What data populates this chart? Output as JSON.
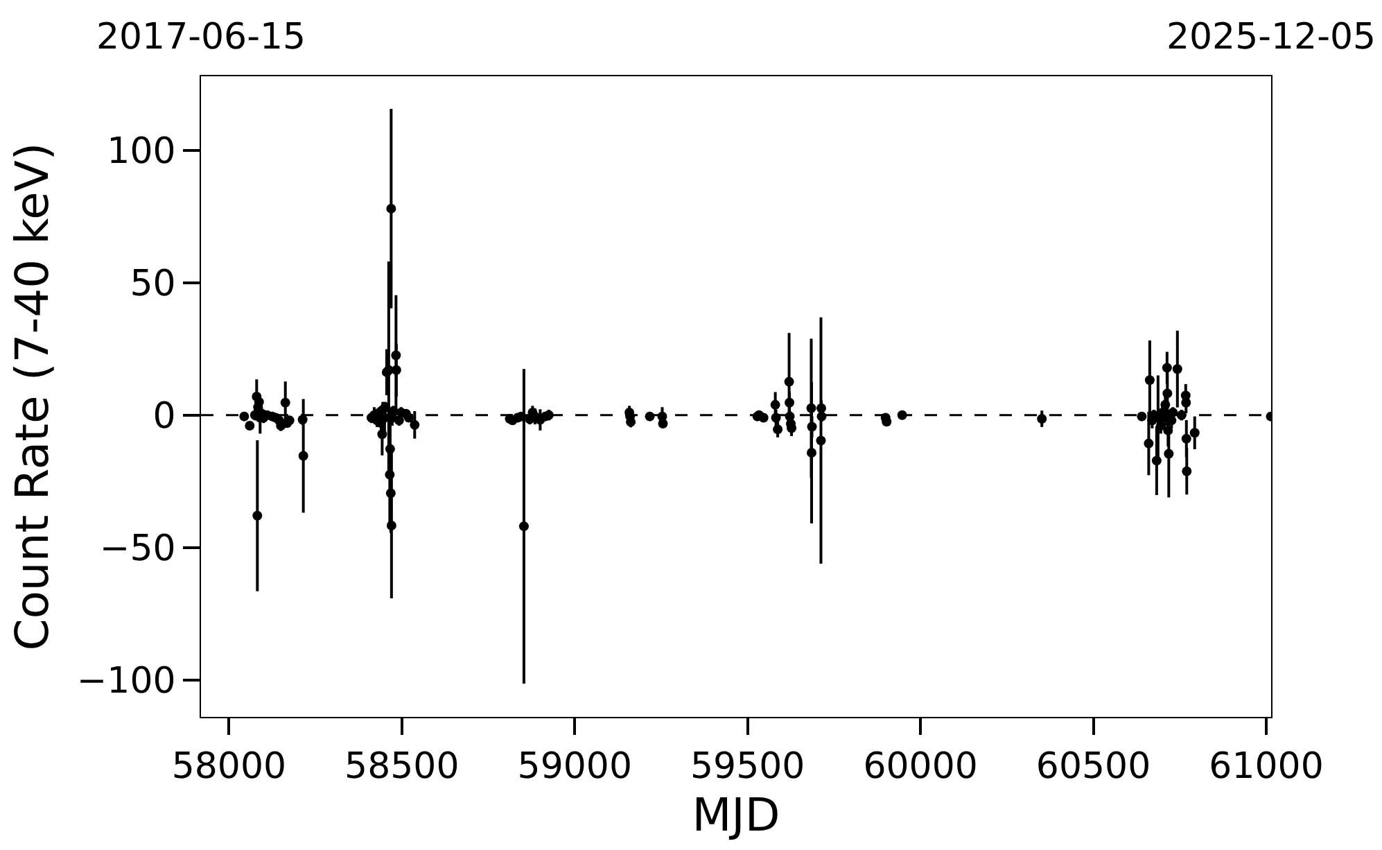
{
  "chart_data": {
    "type": "scatter",
    "xlabel": "MJD",
    "ylabel": "Count Rate (7-40 keV)",
    "x": [
      58044,
      58060,
      58075,
      58080,
      58082,
      58084,
      58087,
      58090,
      58095,
      58100,
      58110,
      58125,
      58135,
      58145,
      58150,
      58163,
      58168,
      58175,
      58213,
      58215,
      58412,
      58420,
      58428,
      58435,
      58440,
      58443,
      58445,
      58450,
      58452,
      58456,
      58462,
      58465,
      58466,
      58468,
      58469,
      58470,
      58472,
      58475,
      58483,
      58484,
      58492,
      58498,
      58512,
      58520,
      58537,
      58812,
      58820,
      58835,
      58845,
      58853,
      58870,
      58878,
      58885,
      58900,
      58915,
      58925,
      59158,
      59160,
      59162,
      59217,
      59253,
      59255,
      59528,
      59533,
      59546,
      59580,
      59582,
      59587,
      59620,
      59621,
      59622,
      59625,
      59627,
      59684,
      59685,
      59686,
      59712,
      59713,
      59714,
      59899,
      59902,
      59947,
      60351,
      60640,
      60660,
      60663,
      60670,
      60675,
      60683,
      60687,
      60695,
      60700,
      60708,
      60710,
      60713,
      60714,
      60716,
      60718,
      60726,
      60730,
      60743,
      60755,
      60767,
      60768,
      60769,
      60770,
      60793,
      61013
    ],
    "values": [
      -0.5,
      -4,
      0,
      7,
      -38,
      3,
      5,
      -1,
      0.5,
      -1,
      0,
      -0.5,
      -1,
      -2,
      -4,
      4.7,
      -3,
      -2,
      -1.7,
      -15.4,
      -1,
      0,
      -2,
      1,
      -3,
      -7.2,
      2,
      -1,
      3,
      16.2,
      17,
      -22.5,
      -12.8,
      -29.5,
      78,
      -41.7,
      -1,
      1.5,
      22.6,
      17,
      -2,
      1,
      0.5,
      -1,
      -3.7,
      -1.4,
      -2,
      -1,
      -0.5,
      -42,
      -1.5,
      1,
      -0.5,
      -1.8,
      -0.5,
      0,
      1,
      -0.5,
      -2.6,
      -0.5,
      -0.5,
      -3.2,
      -0.5,
      0,
      -1,
      3.9,
      -1,
      -5.4,
      12.6,
      4.7,
      -0.5,
      -3.3,
      -4.9,
      2.6,
      -14.2,
      -4.4,
      -9.6,
      2.6,
      -0.5,
      -1,
      -2.5,
      0,
      -1.4,
      -0.5,
      -10.7,
      13.2,
      -2,
      0,
      -17.2,
      -1,
      -4,
      1,
      3.9,
      -1,
      17.9,
      8.2,
      -5.8,
      -14.6,
      -2,
      1,
      17.4,
      0,
      7.4,
      4.7,
      -8.9,
      -21.2,
      -6.7,
      -0.5
    ],
    "errors": [
      1,
      1.5,
      2,
      6.5,
      28.5,
      3,
      3,
      6,
      2,
      2,
      1.5,
      1.5,
      1.5,
      1.5,
      2,
      8,
      1.5,
      1.5,
      2,
      21.5,
      2,
      3,
      2.5,
      2,
      4,
      8,
      3,
      5,
      2,
      8.7,
      41,
      20,
      10,
      15,
      37.7,
      27.5,
      3,
      2,
      22.7,
      10,
      2,
      2,
      1.5,
      1.5,
      5.2,
      1.5,
      1.5,
      1.5,
      1.5,
      59.4,
      2,
      2.5,
      3,
      4,
      1.5,
      2,
      2.5,
      2,
      2,
      1,
      3.5,
      1.5,
      1,
      1,
      1,
      4.8,
      3,
      3,
      18.4,
      4,
      2,
      2,
      3,
      26.3,
      26.7,
      4,
      46.5,
      3,
      2,
      1,
      1,
      1,
      3.1,
      1,
      12,
      15,
      3,
      2,
      13,
      16,
      3,
      4,
      5,
      3,
      6,
      8,
      6,
      16.5,
      3,
      2,
      14.5,
      2,
      4.3,
      4,
      7,
      8.8,
      6.2,
      1
    ],
    "color": "#000000",
    "marker": "circle",
    "xlim": [
      57919,
      61014
    ],
    "xticks": [
      58000,
      58500,
      59000,
      59500,
      60000,
      60500,
      61000
    ],
    "ylim": [
      -114,
      128
    ],
    "yticks": [
      -100,
      -50,
      0,
      50,
      100
    ],
    "x2lim": [
      "2017-06-15",
      "2025-12-05"
    ],
    "x2ticks": [
      "2017-06-15",
      "2025-12-05"
    ],
    "ref_lines": [
      {
        "axis": "y",
        "value": 0,
        "color": "#000000",
        "line_style": "dashed"
      }
    ]
  }
}
